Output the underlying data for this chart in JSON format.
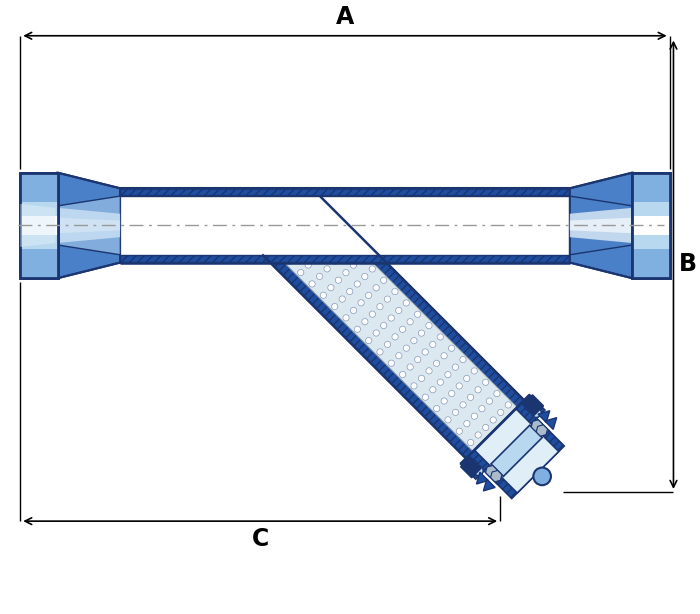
{
  "bg_color": "#ffffff",
  "dark_blue": "#1a3570",
  "mid_blue": "#1f4ea0",
  "light_blue": "#4a80c8",
  "lighter_blue": "#7fb0e0",
  "lightest_blue": "#b8d8f0",
  "white_blue": "#e0eef8",
  "pipe_wall_blue": "#2255aa",
  "hatch_blue": "#1a3a7a",
  "filter_bg": "#dce8f0",
  "title_A": "A",
  "title_B": "B",
  "title_C": "C",
  "label_fontsize": 17
}
